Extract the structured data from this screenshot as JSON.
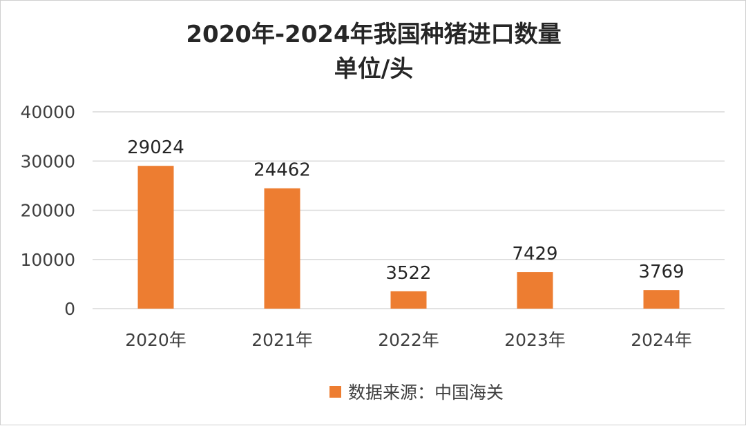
{
  "chart_data": {
    "type": "bar",
    "title": "2020年-2024年我国种猪进口数量",
    "subtitle": "单位/头",
    "categories": [
      "2020年",
      "2021年",
      "2022年",
      "2023年",
      "2024年"
    ],
    "series": [
      {
        "name": "数据来源：中国海关",
        "values": [
          29024,
          24462,
          3522,
          7429,
          3769
        ],
        "color": "#ED7D31"
      }
    ],
    "data_labels": [
      "29024",
      "24462",
      "3522",
      "7429",
      "3769"
    ],
    "y_ticks": [
      "0",
      "10000",
      "20000",
      "30000",
      "40000"
    ],
    "ylim": [
      0,
      40000
    ],
    "xlabel": "",
    "ylabel": "",
    "grid": true,
    "legend_position": "bottom"
  },
  "colors": {
    "bar": "#ED7D31",
    "grid": "#D9D9D9",
    "text": "#404040",
    "title": "#262626"
  }
}
